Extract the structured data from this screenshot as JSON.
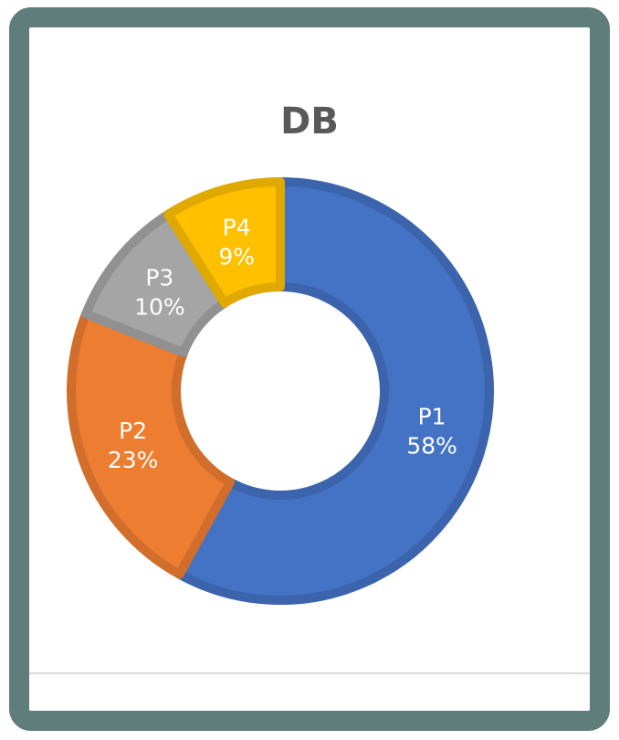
{
  "chart_data": {
    "type": "pie",
    "variant": "donut",
    "title": "DB",
    "categories": [
      "P1",
      "P2",
      "P3",
      "P4"
    ],
    "values": [
      58,
      23,
      10,
      9
    ],
    "labels": [
      "58%",
      "23%",
      "10%",
      "9%"
    ],
    "colors": [
      "#4472c4",
      "#ed7d31",
      "#a5a5a5",
      "#ffc000"
    ],
    "legend": "none"
  }
}
